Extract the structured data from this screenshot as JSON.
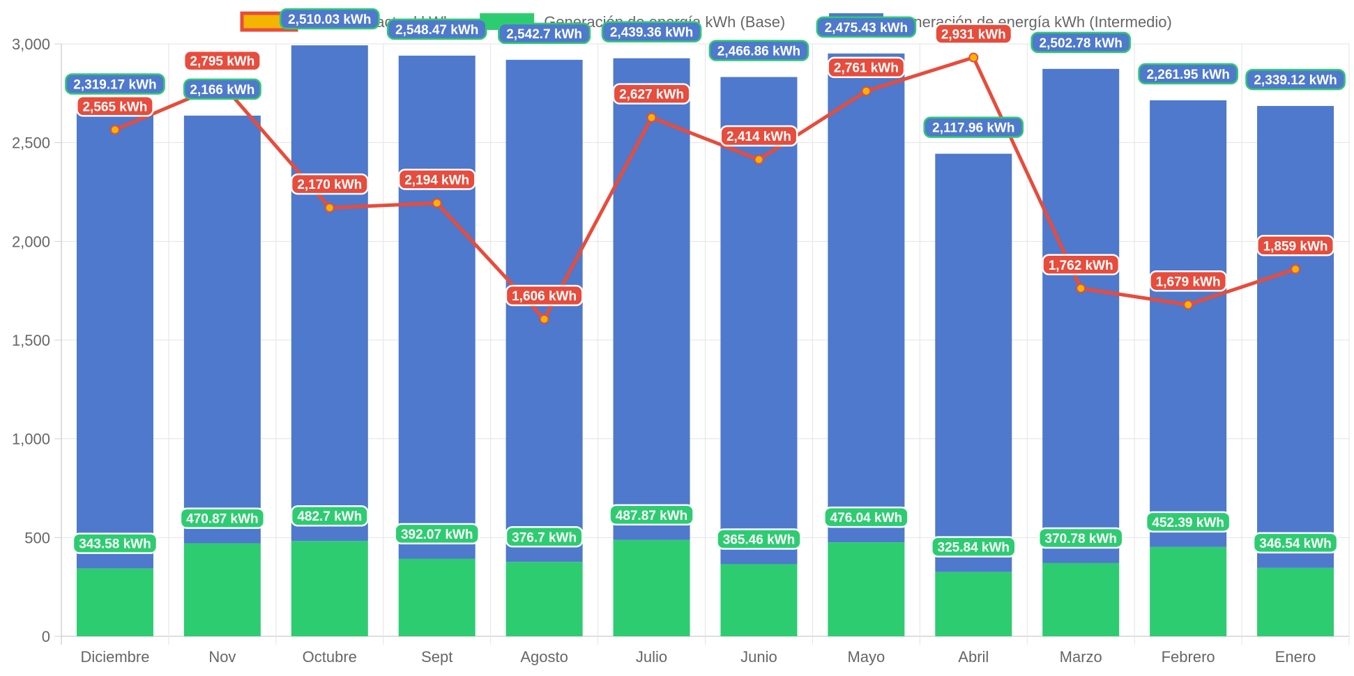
{
  "chart_data": {
    "type": "bar",
    "categories": [
      "Diciembre",
      "Nov",
      "Octubre",
      "Sept",
      "Agosto",
      "Julio",
      "Junio",
      "Mayo",
      "Abril",
      "Marzo",
      "Febrero",
      "Enero"
    ],
    "series": [
      {
        "name": "Generación de energía kWh (Base)",
        "kind": "bar",
        "stack": "generacion",
        "color": "#2ecc71",
        "values": [
          343.58,
          470.87,
          482.7,
          392.07,
          376.7,
          487.87,
          365.46,
          476.04,
          325.84,
          370.78,
          452.39,
          346.54
        ],
        "labels": [
          "343.58 kWh",
          "470.87 kWh",
          "482.7 kWh",
          "392.07 kWh",
          "376.7 kWh",
          "487.87 kWh",
          "365.46 kWh",
          "476.04 kWh",
          "325.84 kWh",
          "370.78 kWh",
          "452.39 kWh",
          "346.54 kWh"
        ]
      },
      {
        "name": "Generación de energía kWh (Intermedio)",
        "kind": "bar",
        "stack": "generacion",
        "color": "#4e79cc",
        "values": [
          2319.17,
          2166,
          2510.03,
          2548.47,
          2542.7,
          2439.36,
          2466.86,
          2475.43,
          2117.96,
          2502.78,
          2261.95,
          2339.12
        ],
        "labels": [
          "2,319.17 kWh",
          "2,166 kWh",
          "2,510.03 kWh",
          "2,548.47 kWh",
          "2,542.7 kWh",
          "2,439.36 kWh",
          "2,466.86 kWh",
          "2,475.43 kWh",
          "2,117.96 kWh",
          "2,502.78 kWh",
          "2,261.95 kWh",
          "2,339.12 kWh"
        ]
      },
      {
        "name": "Consumo actual kWh",
        "kind": "line",
        "color": "#e74c3c",
        "point_color": "#f5b400",
        "values": [
          2565,
          2795,
          2170,
          2194,
          1606,
          2627,
          2414,
          2761,
          2931,
          1762,
          1679,
          1859
        ],
        "labels": [
          "2,565 kWh",
          "2,795 kWh",
          "2,170 kWh",
          "2,194 kWh",
          "1,606 kWh",
          "2,627 kWh",
          "2,414 kWh",
          "2,761 kWh",
          "2,931 kWh",
          "1,762 kWh",
          "1,679 kWh",
          "1,859 kWh"
        ]
      }
    ],
    "legend": {
      "placement": "top",
      "items": [
        {
          "label": "Consumo actual kWh",
          "color": "#f5b400",
          "border": "#e74c3c"
        },
        {
          "label": "Generación de energía kWh (Base)",
          "color": "#2ecc71",
          "border": "#2ecc71"
        },
        {
          "label": "Generación de energía kWh (Intermedio)",
          "color": "#4e79cc",
          "border": "#4e79cc"
        }
      ]
    },
    "y_ticks": [
      "0",
      "500",
      "1,000",
      "1,500",
      "2,000",
      "2,500",
      "3,000"
    ],
    "ylim": [
      0,
      3000
    ],
    "grid": true
  }
}
